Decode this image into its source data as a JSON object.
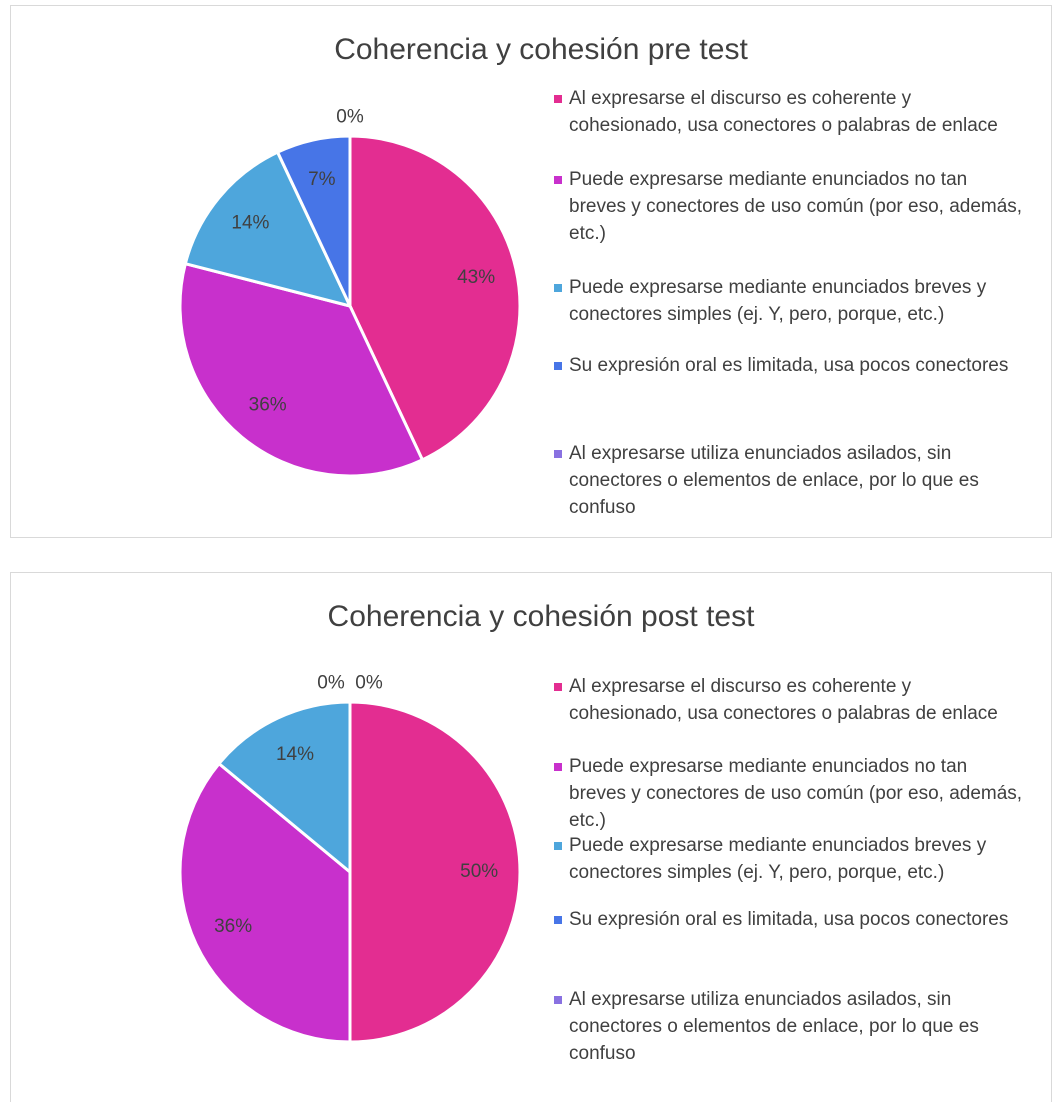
{
  "chart_data": [
    {
      "type": "pie",
      "title": "Coherencia y cohesión pre test",
      "categories": [
        "Al expresarse el discurso es coherente y cohesionado, usa conectores o palabras de enlace",
        "Puede expresarse mediante enunciados no tan breves y conectores de uso común (por eso, además, etc.)",
        "Puede expresarse mediante enunciados breves y conectores simples (ej. Y, pero, porque, etc.)",
        "Su expresión oral es limitada, usa pocos conectores",
        "Al expresarse utiliza enunciados asilados, sin conectores o elementos de enlace, por lo que es confuso"
      ],
      "values": [
        43,
        36,
        14,
        7,
        0
      ],
      "value_labels": [
        "43%",
        "36%",
        "14%",
        "7%",
        "0%"
      ],
      "colors": [
        "#e32d91",
        "#c830cc",
        "#4ea6dc",
        "#4775e7",
        "#8971e1"
      ]
    },
    {
      "type": "pie",
      "title": "Coherencia y cohesión post test",
      "categories": [
        "Al expresarse el discurso es coherente y cohesionado, usa conectores o palabras de enlace",
        "Puede expresarse mediante enunciados no tan breves y conectores de uso común (por eso, además, etc.)",
        "Puede expresarse mediante enunciados breves y conectores simples (ej. Y, pero, porque, etc.)",
        "Su expresión oral es limitada, usa pocos conectores",
        "Al expresarse utiliza enunciados asilados, sin conectores o elementos de enlace, por lo que es confuso"
      ],
      "values": [
        50,
        36,
        14,
        0,
        0
      ],
      "value_labels": [
        "50%",
        "36%",
        "14%",
        "0%",
        "0%"
      ],
      "colors": [
        "#e32d91",
        "#c830cc",
        "#4ea6dc",
        "#4775e7",
        "#8971e1"
      ]
    }
  ]
}
